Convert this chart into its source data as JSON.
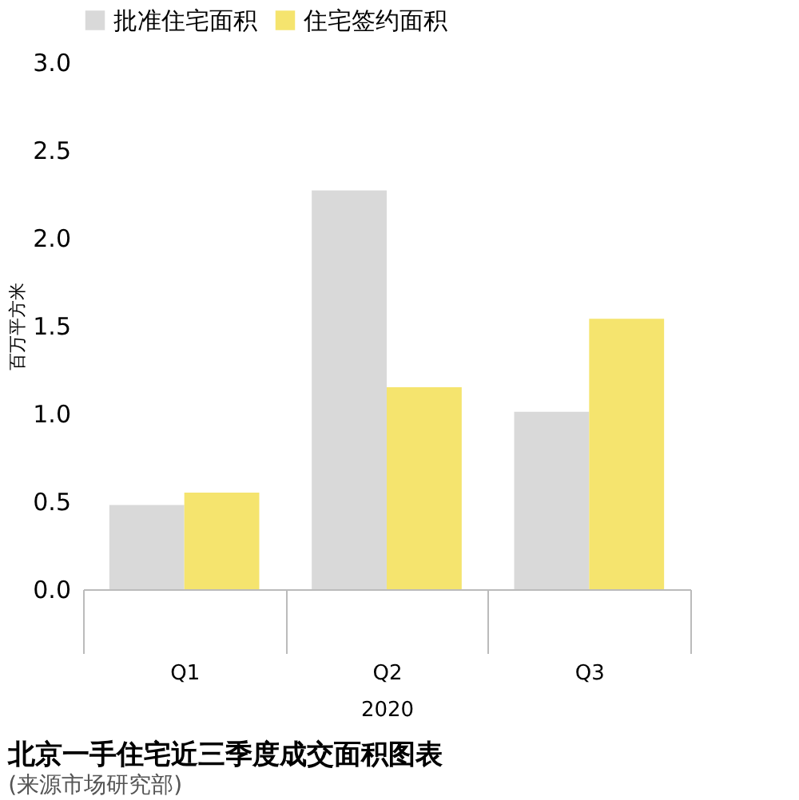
{
  "chart_data": {
    "type": "bar",
    "title": "北京一手住宅近三季度成交面积图表",
    "annotations": [
      "(来源市场研究部)"
    ],
    "categories": [
      "Q1",
      "Q2",
      "Q3"
    ],
    "xlabel": "2020",
    "ylabel": "百万平方米",
    "series": [
      {
        "name": "批准住宅面积",
        "color": "#d9d9d9",
        "values": [
          0.48,
          2.27,
          1.01
        ]
      },
      {
        "name": "住宅签约面积",
        "color": "#f5e46e",
        "values": [
          0.55,
          1.15,
          1.54
        ]
      }
    ],
    "ylim": [
      0,
      3
    ],
    "yticks": [
      {
        "value": 0,
        "label": "0.0"
      },
      {
        "value": 0.5,
        "label": "0.5"
      },
      {
        "value": 1,
        "label": "1.0"
      },
      {
        "value": 1.5,
        "label": "1.5"
      },
      {
        "value": 2,
        "label": "2.0"
      },
      {
        "value": 2.5,
        "label": "2.5"
      },
      {
        "value": 3,
        "label": "3.0"
      }
    ],
    "grid": false,
    "legend": "top"
  }
}
